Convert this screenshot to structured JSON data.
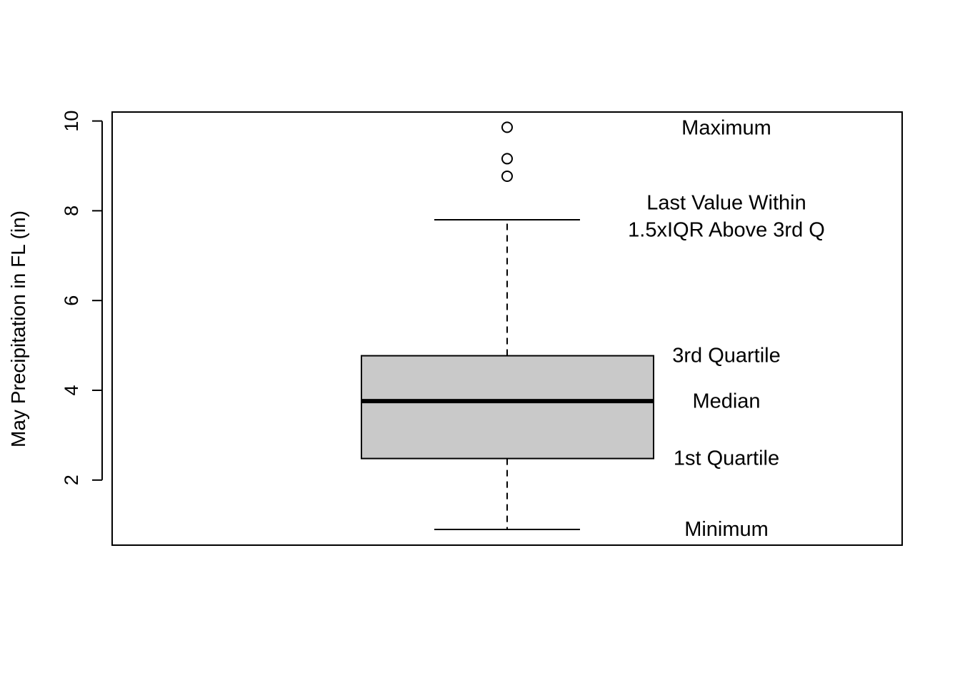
{
  "chart_data": {
    "type": "boxplot",
    "title": "",
    "xlabel": "",
    "ylabel": "May Precipitation in FL (in)",
    "ylim": [
      0.55,
      10.2
    ],
    "yticks": [
      2,
      4,
      6,
      8,
      10
    ],
    "box": {
      "whisker_low": 0.9,
      "q1": 2.48,
      "median": 3.76,
      "q3": 4.77,
      "whisker_high": 7.8,
      "outliers": [
        8.77,
        9.16,
        9.86
      ],
      "fill": "#c9c9c9"
    },
    "annotations": [
      {
        "lines": [
          "Maximum"
        ],
        "y": 9.84
      },
      {
        "lines": [
          "Last Value Within",
          "1.5xIQR Above 3rd Q"
        ],
        "y": 7.87
      },
      {
        "lines": [
          "3rd Quartile"
        ],
        "y": 4.77
      },
      {
        "lines": [
          "Median"
        ],
        "y": 3.75
      },
      {
        "lines": [
          "1st Quartile"
        ],
        "y": 2.48
      },
      {
        "lines": [
          "Minimum"
        ],
        "y": 0.9
      }
    ],
    "grid": false,
    "legend": "none"
  }
}
